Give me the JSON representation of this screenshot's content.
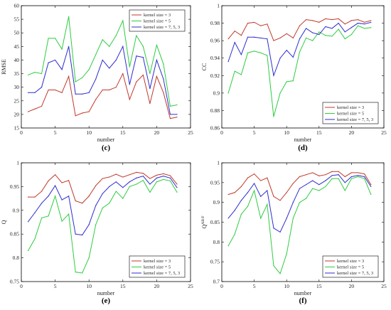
{
  "chart_data": [
    {
      "id": "c",
      "type": "line",
      "panel_label": "(c)",
      "xlabel": "number",
      "ylabel": "RMSE",
      "xlim": [
        0,
        25
      ],
      "ylim": [
        15,
        60
      ],
      "xticks": [
        0,
        5,
        10,
        15,
        20,
        25
      ],
      "yticks": [
        15,
        20,
        25,
        30,
        35,
        40,
        45,
        50,
        55,
        60
      ],
      "ytick_labels": [
        "15",
        "20",
        "25",
        "30",
        "35",
        "40",
        "45",
        "50",
        "55",
        "60"
      ],
      "legend_position": "top-right",
      "x": [
        1,
        2,
        3,
        4,
        5,
        6,
        7,
        8,
        9,
        10,
        11,
        12,
        13,
        14,
        15,
        16,
        17,
        18,
        19,
        20,
        21,
        22,
        23
      ],
      "series": [
        {
          "name": "kernel size = 3",
          "color": "#c0392b",
          "values": [
            21,
            22,
            23,
            29,
            29,
            28,
            34,
            19.5,
            20.5,
            21,
            25.5,
            29,
            29,
            30,
            35,
            25.5,
            32,
            34.5,
            24,
            34,
            28,
            18.5,
            19
          ]
        },
        {
          "name": "kernel size = 5",
          "color": "#2ecc40",
          "values": [
            34.5,
            35.5,
            35,
            48,
            48,
            44,
            56,
            32,
            33.5,
            36.5,
            42,
            47.5,
            45,
            49,
            54.5,
            37.5,
            49,
            45,
            35,
            45.5,
            38.5,
            23,
            23.5
          ]
        },
        {
          "name": "kernel size = 7, 5, 3",
          "color": "#2c2ccf",
          "values": [
            28,
            28,
            30,
            39,
            40,
            36.5,
            45,
            27.5,
            27.5,
            28,
            33,
            40,
            37,
            40,
            45,
            31,
            41.5,
            41,
            29.5,
            40,
            33,
            20,
            20
          ]
        }
      ]
    },
    {
      "id": "d",
      "type": "line",
      "panel_label": "(d)",
      "xlabel": "number",
      "ylabel": "CC",
      "xlim": [
        0,
        25
      ],
      "ylim": [
        0.86,
        1.0
      ],
      "xticks": [
        0,
        5,
        10,
        15,
        20,
        25
      ],
      "yticks": [
        0.86,
        0.88,
        0.9,
        0.92,
        0.94,
        0.96,
        0.98,
        1.0
      ],
      "ytick_labels": [
        "0.86",
        "0.88",
        "0.9",
        "0.92",
        "0.94",
        "0.96",
        "0.98",
        "1"
      ],
      "legend_position": "bottom-right",
      "x": [
        1,
        2,
        3,
        4,
        5,
        6,
        7,
        8,
        9,
        10,
        11,
        12,
        13,
        14,
        15,
        16,
        17,
        18,
        19,
        20,
        21,
        22,
        23
      ],
      "series": [
        {
          "name": "kernel size = 3",
          "color": "#c0392b",
          "values": [
            0.962,
            0.971,
            0.966,
            0.98,
            0.981,
            0.977,
            0.979,
            0.96,
            0.963,
            0.968,
            0.963,
            0.977,
            0.984,
            0.983,
            0.981,
            0.985,
            0.984,
            0.985,
            0.979,
            0.983,
            0.984,
            0.981,
            0.983
          ]
        },
        {
          "name": "kernel size = 5",
          "color": "#2ecc40",
          "values": [
            0.9,
            0.925,
            0.921,
            0.946,
            0.948,
            0.946,
            0.943,
            0.873,
            0.9,
            0.913,
            0.914,
            0.947,
            0.963,
            0.96,
            0.97,
            0.966,
            0.965,
            0.973,
            0.962,
            0.967,
            0.977,
            0.974,
            0.975
          ]
        },
        {
          "name": "kernel size = 7, 5, 3",
          "color": "#2c2ccf",
          "values": [
            0.936,
            0.958,
            0.944,
            0.964,
            0.964,
            0.963,
            0.962,
            0.92,
            0.94,
            0.949,
            0.941,
            0.962,
            0.974,
            0.969,
            0.967,
            0.976,
            0.974,
            0.98,
            0.97,
            0.975,
            0.98,
            0.979,
            0.981
          ]
        }
      ]
    },
    {
      "id": "e",
      "type": "line",
      "panel_label": "(e)",
      "xlabel": "number",
      "ylabel": "Q",
      "xlim": [
        0,
        25
      ],
      "ylim": [
        0.75,
        1.0
      ],
      "xticks": [
        0,
        5,
        10,
        15,
        20,
        25
      ],
      "yticks": [
        0.75,
        0.8,
        0.85,
        0.9,
        0.95,
        1.0
      ],
      "ytick_labels": [
        "0.75",
        "0.8",
        "0.85",
        "0.9",
        "0.95",
        "1"
      ],
      "legend_position": "bottom-right",
      "x": [
        1,
        2,
        3,
        4,
        5,
        6,
        7,
        8,
        9,
        10,
        11,
        12,
        13,
        14,
        15,
        16,
        17,
        18,
        19,
        20,
        21,
        22,
        23
      ],
      "series": [
        {
          "name": "kernel size = 3",
          "color": "#c0392b",
          "values": [
            0.928,
            0.928,
            0.94,
            0.962,
            0.975,
            0.958,
            0.963,
            0.92,
            0.915,
            0.93,
            0.952,
            0.967,
            0.97,
            0.976,
            0.97,
            0.975,
            0.98,
            0.978,
            0.967,
            0.974,
            0.977,
            0.973,
            0.955
          ]
        },
        {
          "name": "kernel size = 5",
          "color": "#2ecc40",
          "values": [
            0.815,
            0.84,
            0.884,
            0.888,
            0.93,
            0.877,
            0.892,
            0.77,
            0.768,
            0.8,
            0.87,
            0.905,
            0.915,
            0.94,
            0.925,
            0.95,
            0.955,
            0.963,
            0.938,
            0.96,
            0.965,
            0.962,
            0.938
          ]
        },
        {
          "name": "kernel size = 7, 5, 3",
          "color": "#2c2ccf",
          "values": [
            0.876,
            0.895,
            0.915,
            0.93,
            0.952,
            0.922,
            0.93,
            0.85,
            0.848,
            0.87,
            0.91,
            0.935,
            0.95,
            0.96,
            0.948,
            0.96,
            0.968,
            0.972,
            0.955,
            0.968,
            0.972,
            0.968,
            0.948
          ]
        }
      ]
    },
    {
      "id": "f",
      "type": "line",
      "panel_label": "(f)",
      "xlabel": "number",
      "ylabel": "Q",
      "ylabel_superscript": "AB/F",
      "xlim": [
        0,
        25
      ],
      "ylim": [
        0.7,
        1.0
      ],
      "xticks": [
        0,
        5,
        10,
        15,
        20,
        25
      ],
      "yticks": [
        0.7,
        0.75,
        0.8,
        0.85,
        0.9,
        0.95,
        1.0
      ],
      "ytick_labels": [
        "0.7",
        "0.75",
        "0.8",
        "0.85",
        "0.9",
        "0.95",
        "1"
      ],
      "legend_position": "bottom-right",
      "x": [
        1,
        2,
        3,
        4,
        5,
        6,
        7,
        8,
        9,
        10,
        11,
        12,
        13,
        14,
        15,
        16,
        17,
        18,
        19,
        20,
        21,
        22,
        23
      ],
      "series": [
        {
          "name": "kernel size = 3",
          "color": "#c0392b",
          "values": [
            0.92,
            0.925,
            0.94,
            0.962,
            0.972,
            0.955,
            0.962,
            0.915,
            0.905,
            0.925,
            0.948,
            0.965,
            0.97,
            0.975,
            0.967,
            0.97,
            0.978,
            0.978,
            0.965,
            0.975,
            0.975,
            0.972,
            0.945
          ]
        },
        {
          "name": "kernel size = 5",
          "color": "#2ecc40",
          "values": [
            0.79,
            0.82,
            0.87,
            0.89,
            0.93,
            0.86,
            0.895,
            0.74,
            0.72,
            0.77,
            0.86,
            0.9,
            0.91,
            0.935,
            0.93,
            0.94,
            0.96,
            0.96,
            0.93,
            0.96,
            0.965,
            0.96,
            0.92
          ]
        },
        {
          "name": "kernel size = 7, 5, 3",
          "color": "#2c2ccf",
          "values": [
            0.86,
            0.88,
            0.905,
            0.925,
            0.948,
            0.915,
            0.93,
            0.835,
            0.825,
            0.86,
            0.9,
            0.935,
            0.945,
            0.955,
            0.945,
            0.955,
            0.968,
            0.97,
            0.95,
            0.965,
            0.968,
            0.965,
            0.94
          ]
        }
      ]
    }
  ]
}
